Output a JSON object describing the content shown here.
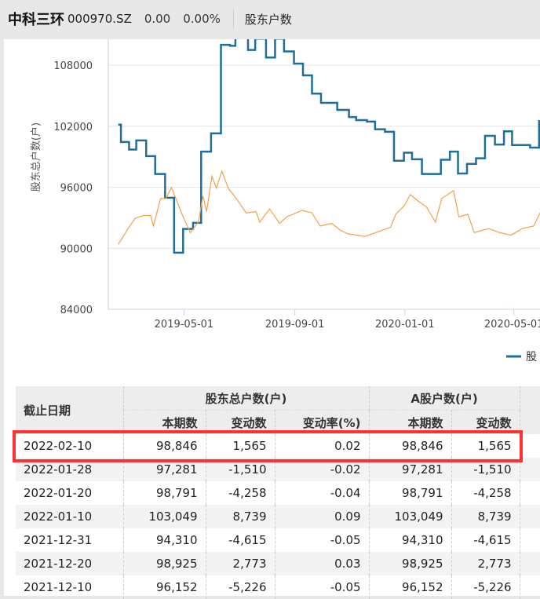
{
  "header": {
    "name": "中科三环",
    "code": "000970.SZ",
    "price": "0.00",
    "change_pct": "0.00%",
    "tab": "股东户数"
  },
  "colors": {
    "blue": "#1f6f9a",
    "orange": "#f5a04a",
    "highlight": "#ff3333"
  },
  "chart_data": {
    "type": "line",
    "ylabel": "股东总户数(户)",
    "ylim": [
      84000,
      110500
    ],
    "yticks": [
      "84000",
      "90000",
      "96000",
      "102000",
      "108000"
    ],
    "xlim": [
      "2019-02-06",
      "2020-05-30"
    ],
    "xticks": [
      "2019-05-01",
      "2019-09-01",
      "2020-01-01",
      "2020-05-01"
    ],
    "grid": true,
    "legend": {
      "placement": "bottom-right",
      "label": "股"
    },
    "series": [
      {
        "style": "step",
        "color": "#1f6f9a",
        "points": [
          [
            "2019-02-17",
            102150
          ],
          [
            "2019-02-20",
            100450
          ],
          [
            "2019-03-01",
            99700
          ],
          [
            "2019-03-09",
            100600
          ],
          [
            "2019-03-20",
            99060
          ],
          [
            "2019-03-30",
            97300
          ],
          [
            "2019-04-10",
            94970
          ],
          [
            "2019-04-20",
            89570
          ],
          [
            "2019-04-30",
            91900
          ],
          [
            "2019-05-11",
            92500
          ],
          [
            "2019-05-20",
            99500
          ],
          [
            "2019-05-31",
            101300
          ],
          [
            "2019-06-11",
            110000
          ],
          [
            "2019-06-21",
            109900
          ],
          [
            "2019-06-27",
            111500
          ],
          [
            "2019-07-11",
            109500
          ],
          [
            "2019-07-19",
            110600
          ],
          [
            "2019-07-31",
            108750
          ],
          [
            "2019-08-10",
            110600
          ],
          [
            "2019-08-20",
            109350
          ],
          [
            "2019-08-31",
            108150
          ],
          [
            "2019-09-10",
            107000
          ],
          [
            "2019-09-20",
            105200
          ],
          [
            "2019-09-30",
            104300
          ],
          [
            "2019-10-18",
            103600
          ],
          [
            "2019-10-31",
            102900
          ],
          [
            "2019-11-08",
            102600
          ],
          [
            "2019-11-20",
            102450
          ],
          [
            "2019-11-29",
            101700
          ],
          [
            "2019-12-10",
            101450
          ],
          [
            "2019-12-20",
            98600
          ],
          [
            "2019-12-31",
            99400
          ],
          [
            "2020-01-09",
            98750
          ],
          [
            "2020-01-20",
            97300
          ],
          [
            "2020-02-10",
            98700
          ],
          [
            "2020-02-20",
            99500
          ],
          [
            "2020-02-29",
            97350
          ],
          [
            "2020-03-10",
            98300
          ],
          [
            "2020-03-20",
            98850
          ],
          [
            "2020-03-30",
            101050
          ],
          [
            "2020-04-10",
            100200
          ],
          [
            "2020-04-20",
            101500
          ],
          [
            "2020-04-29",
            100150
          ],
          [
            "2020-05-19",
            99900
          ],
          [
            "2020-05-29",
            102500
          ]
        ]
      },
      {
        "style": "line",
        "color": "#f5a04a",
        "points": [
          [
            "2019-02-17",
            90386
          ],
          [
            "2019-02-27",
            91802
          ],
          [
            "2019-03-08",
            92960
          ],
          [
            "2019-03-17",
            93218
          ],
          [
            "2019-03-25",
            93218
          ],
          [
            "2019-03-28",
            92188
          ],
          [
            "2019-04-05",
            94891
          ],
          [
            "2019-04-11",
            94891
          ],
          [
            "2019-04-17",
            95972
          ],
          [
            "2019-04-22",
            94891
          ],
          [
            "2019-04-30",
            93089
          ],
          [
            "2019-05-08",
            91544
          ],
          [
            "2019-05-17",
            92574
          ],
          [
            "2019-05-22",
            95148
          ],
          [
            "2019-05-26",
            93604
          ],
          [
            "2019-06-01",
            97079
          ],
          [
            "2019-06-06",
            95920
          ],
          [
            "2019-06-12",
            97593
          ],
          [
            "2019-06-19",
            95920
          ],
          [
            "2019-06-28",
            94891
          ],
          [
            "2019-07-09",
            93475
          ],
          [
            "2019-07-20",
            93604
          ],
          [
            "2019-07-24",
            92574
          ],
          [
            "2019-08-04",
            93861
          ],
          [
            "2019-08-15",
            92445
          ],
          [
            "2019-08-23",
            93089
          ],
          [
            "2019-09-09",
            93732
          ],
          [
            "2019-09-20",
            93475
          ],
          [
            "2019-09-29",
            92188
          ],
          [
            "2019-10-12",
            92445
          ],
          [
            "2019-10-21",
            91802
          ],
          [
            "2019-10-30",
            91416
          ],
          [
            "2019-11-18",
            91158
          ],
          [
            "2019-12-04",
            91673
          ],
          [
            "2019-12-16",
            92059
          ],
          [
            "2019-12-22",
            93346
          ],
          [
            "2020-01-01",
            94247
          ],
          [
            "2020-01-07",
            95277
          ],
          [
            "2020-01-16",
            94633
          ],
          [
            "2020-01-25",
            94067
          ],
          [
            "2020-02-04",
            92574
          ],
          [
            "2020-02-11",
            94891
          ],
          [
            "2020-02-24",
            95663
          ],
          [
            "2020-03-01",
            93089
          ],
          [
            "2020-03-11",
            93346
          ],
          [
            "2020-03-18",
            91544
          ],
          [
            "2020-04-03",
            91931
          ],
          [
            "2020-04-15",
            91544
          ],
          [
            "2020-04-28",
            91287
          ],
          [
            "2020-05-10",
            91931
          ],
          [
            "2020-05-23",
            92188
          ],
          [
            "2020-05-30",
            93475
          ]
        ]
      }
    ]
  },
  "table": {
    "date_header": "截止日期",
    "group1": "股东总户数(户)",
    "group2": "A股户数(户)",
    "sub": [
      "本期数",
      "变动数",
      "变动率(%)",
      "本期数",
      "变动数"
    ],
    "rows": [
      [
        "2022-02-10",
        "98,846",
        "1,565",
        "0.02",
        "98,846",
        "1,565"
      ],
      [
        "2022-01-28",
        "97,281",
        "-1,510",
        "-0.02",
        "97,281",
        "-1,510"
      ],
      [
        "2022-01-20",
        "98,791",
        "-4,258",
        "-0.04",
        "98,791",
        "-4,258"
      ],
      [
        "2022-01-10",
        "103,049",
        "8,739",
        "0.09",
        "103,049",
        "8,739"
      ],
      [
        "2021-12-31",
        "94,310",
        "-4,615",
        "-0.05",
        "94,310",
        "-4,615"
      ],
      [
        "2021-12-20",
        "98,925",
        "2,773",
        "0.03",
        "98,925",
        "2,773"
      ],
      [
        "2021-12-10",
        "96,152",
        "-5,226",
        "-0.05",
        "96,152",
        "-5,226"
      ]
    ]
  }
}
